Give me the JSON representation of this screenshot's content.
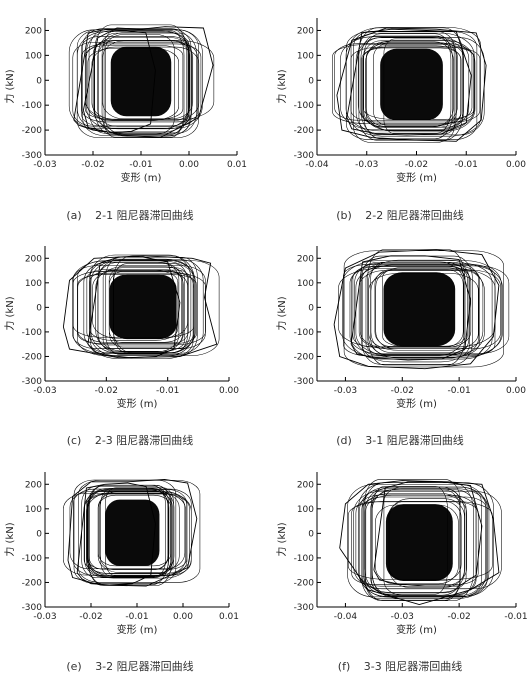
{
  "chart_data": [
    {
      "type": "line",
      "panel": "(a)",
      "caption": "2-1 阻尼器滞回曲线",
      "xlabel": "变形 (m)",
      "ylabel": "力 (kN)",
      "xlim": [
        -0.03,
        0.01
      ],
      "ylim": [
        -300,
        250
      ],
      "xticks": [
        "-0.03",
        "-0.02",
        "-0.01",
        "0.00",
        "0.01"
      ],
      "yticks": [
        "200",
        "100",
        "0",
        "-100",
        "-200",
        "-300"
      ],
      "grid": false,
      "loop_envelope": {
        "x_min": -0.025,
        "x_max": 0.005,
        "y_min": -230,
        "y_max": 220
      },
      "series": [
        {
          "x": [
            -0.024,
            -0.021,
            -0.017,
            -0.013,
            -0.009,
            -0.007,
            -0.008,
            -0.012,
            -0.016,
            -0.02,
            -0.023,
            -0.024
          ],
          "y": [
            -160,
            190,
            205,
            200,
            190,
            40,
            -175,
            -205,
            -210,
            -200,
            -180,
            -160
          ]
        },
        {
          "x": [
            -0.022,
            -0.019,
            -0.015,
            -0.01,
            -0.005,
            0.003,
            0.005,
            0.002,
            -0.006,
            -0.014,
            -0.021,
            -0.022
          ],
          "y": [
            -120,
            170,
            210,
            205,
            215,
            210,
            60,
            -150,
            -230,
            -220,
            -190,
            -120
          ]
        }
      ]
    },
    {
      "type": "line",
      "panel": "(b)",
      "caption": "2-2 阻尼器滞回曲线",
      "xlabel": "变形 (m)",
      "ylabel": "力 (kN)",
      "xlim": [
        -0.04,
        0.0
      ],
      "ylim": [
        -300,
        250
      ],
      "xticks": [
        "-0.04",
        "-0.03",
        "-0.02",
        "-0.01",
        "0.00"
      ],
      "yticks": [
        "200",
        "100",
        "0",
        "-100",
        "-200",
        "-300"
      ],
      "grid": false,
      "loop_envelope": {
        "x_min": -0.036,
        "x_max": -0.006,
        "y_min": -250,
        "y_max": 215
      },
      "series": [
        {
          "x": [
            -0.034,
            -0.031,
            -0.025,
            -0.018,
            -0.012,
            -0.009,
            -0.01,
            -0.015,
            -0.022,
            -0.028,
            -0.033,
            -0.034
          ],
          "y": [
            -150,
            190,
            205,
            200,
            195,
            20,
            -170,
            -215,
            -220,
            -215,
            -195,
            -150
          ]
        },
        {
          "x": [
            -0.036,
            -0.033,
            -0.026,
            -0.016,
            -0.008,
            -0.006,
            -0.007,
            -0.012,
            -0.02,
            -0.029,
            -0.035,
            -0.036
          ],
          "y": [
            -60,
            160,
            210,
            205,
            190,
            60,
            -160,
            -245,
            -240,
            -230,
            -200,
            -60
          ]
        }
      ]
    },
    {
      "type": "line",
      "panel": "(c)",
      "caption": "2-3 阻尼器滞回曲线",
      "xlabel": "变形 (m)",
      "ylabel": "力 (kN)",
      "xlim": [
        -0.03,
        0.0
      ],
      "ylim": [
        -300,
        250
      ],
      "xticks": [
        "-0.03",
        "-0.02",
        "-0.01",
        "0.00"
      ],
      "yticks": [
        "200",
        "100",
        "0",
        "-100",
        "-200",
        "-300"
      ],
      "grid": false,
      "loop_envelope": {
        "x_min": -0.027,
        "x_max": -0.001,
        "y_min": -210,
        "y_max": 215
      },
      "series": [
        {
          "x": [
            -0.023,
            -0.021,
            -0.018,
            -0.014,
            -0.01,
            -0.008,
            -0.009,
            -0.012,
            -0.016,
            -0.02,
            -0.022,
            -0.023
          ],
          "y": [
            -150,
            180,
            205,
            205,
            185,
            20,
            -170,
            -200,
            -205,
            -195,
            -180,
            -150
          ]
        },
        {
          "x": [
            -0.027,
            -0.026,
            -0.022,
            -0.014,
            -0.006,
            -0.003,
            -0.004,
            -0.002,
            -0.008,
            -0.018,
            -0.026,
            -0.027
          ],
          "y": [
            -80,
            110,
            200,
            210,
            200,
            180,
            40,
            -150,
            -200,
            -205,
            -170,
            -80
          ]
        }
      ]
    },
    {
      "type": "line",
      "panel": "(d)",
      "caption": "3-1 阻尼器滞回曲线",
      "xlabel": "变形 (m)",
      "ylabel": "力 (kN)",
      "xlim": [
        -0.035,
        0.0
      ],
      "ylim": [
        -300,
        250
      ],
      "xticks": [
        "-0.03",
        "-0.02",
        "-0.01",
        "0.00"
      ],
      "yticks": [
        "200",
        "100",
        "0",
        "-100",
        "-200",
        "-300"
      ],
      "grid": false,
      "loop_envelope": {
        "x_min": -0.032,
        "x_max": -0.002,
        "y_min": -250,
        "y_max": 235
      },
      "series": [
        {
          "x": [
            -0.029,
            -0.027,
            -0.022,
            -0.016,
            -0.01,
            -0.008,
            -0.009,
            -0.013,
            -0.019,
            -0.025,
            -0.028,
            -0.029
          ],
          "y": [
            -150,
            185,
            210,
            210,
            195,
            30,
            -170,
            -210,
            -215,
            -205,
            -190,
            -150
          ]
        },
        {
          "x": [
            -0.032,
            -0.03,
            -0.024,
            -0.014,
            -0.006,
            -0.003,
            -0.004,
            -0.008,
            -0.016,
            -0.026,
            -0.031,
            -0.032
          ],
          "y": [
            -70,
            160,
            225,
            235,
            215,
            90,
            -120,
            -230,
            -250,
            -240,
            -200,
            -70
          ]
        }
      ]
    },
    {
      "type": "line",
      "panel": "(e)",
      "caption": "3-2 阻尼器滞回曲线",
      "xlabel": "变形 (m)",
      "ylabel": "力 (kN)",
      "xlim": [
        -0.03,
        0.01
      ],
      "ylim": [
        -300,
        250
      ],
      "xticks": [
        "-0.03",
        "-0.02",
        "-0.01",
        "0.00",
        "0.01"
      ],
      "yticks": [
        "200",
        "100",
        "0",
        "-100",
        "-200",
        "-300"
      ],
      "grid": false,
      "loop_envelope": {
        "x_min": -0.025,
        "x_max": 0.003,
        "y_min": -215,
        "y_max": 220
      },
      "series": [
        {
          "x": [
            -0.023,
            -0.021,
            -0.017,
            -0.012,
            -0.008,
            -0.006,
            -0.007,
            -0.011,
            -0.016,
            -0.02,
            -0.022,
            -0.023
          ],
          "y": [
            -160,
            185,
            200,
            205,
            190,
            40,
            -170,
            -205,
            -210,
            -205,
            -185,
            -160
          ]
        },
        {
          "x": [
            -0.025,
            -0.024,
            -0.02,
            -0.012,
            -0.004,
            0.001,
            0.003,
            0.001,
            -0.008,
            -0.018,
            -0.024,
            -0.025
          ],
          "y": [
            -110,
            150,
            210,
            210,
            220,
            205,
            60,
            -140,
            -215,
            -210,
            -180,
            -110
          ]
        }
      ]
    },
    {
      "type": "line",
      "panel": "(f)",
      "caption": "3-3 阻尼器滞回曲线",
      "xlabel": "变形 (m)",
      "ylabel": "力 (kN)",
      "xlim": [
        -0.045,
        -0.01
      ],
      "ylim": [
        -300,
        250
      ],
      "xticks": [
        "-0.04",
        "-0.03",
        "-0.02",
        "-0.01"
      ],
      "yticks": [
        "200",
        "100",
        "0",
        "-100",
        "-200",
        "-300"
      ],
      "grid": false,
      "loop_envelope": {
        "x_min": -0.041,
        "x_max": -0.013,
        "y_min": -290,
        "y_max": 215
      },
      "series": [
        {
          "x": [
            -0.035,
            -0.033,
            -0.029,
            -0.023,
            -0.018,
            -0.016,
            -0.017,
            -0.02,
            -0.026,
            -0.031,
            -0.034,
            -0.035
          ],
          "y": [
            -150,
            185,
            210,
            210,
            195,
            30,
            -170,
            -215,
            -215,
            -205,
            -190,
            -150
          ]
        },
        {
          "x": [
            -0.041,
            -0.04,
            -0.036,
            -0.03,
            -0.022,
            -0.016,
            -0.014,
            -0.013,
            -0.018,
            -0.027,
            -0.036,
            -0.041
          ],
          "y": [
            -60,
            120,
            200,
            215,
            210,
            200,
            60,
            -160,
            -230,
            -290,
            -230,
            -60
          ]
        }
      ]
    }
  ]
}
